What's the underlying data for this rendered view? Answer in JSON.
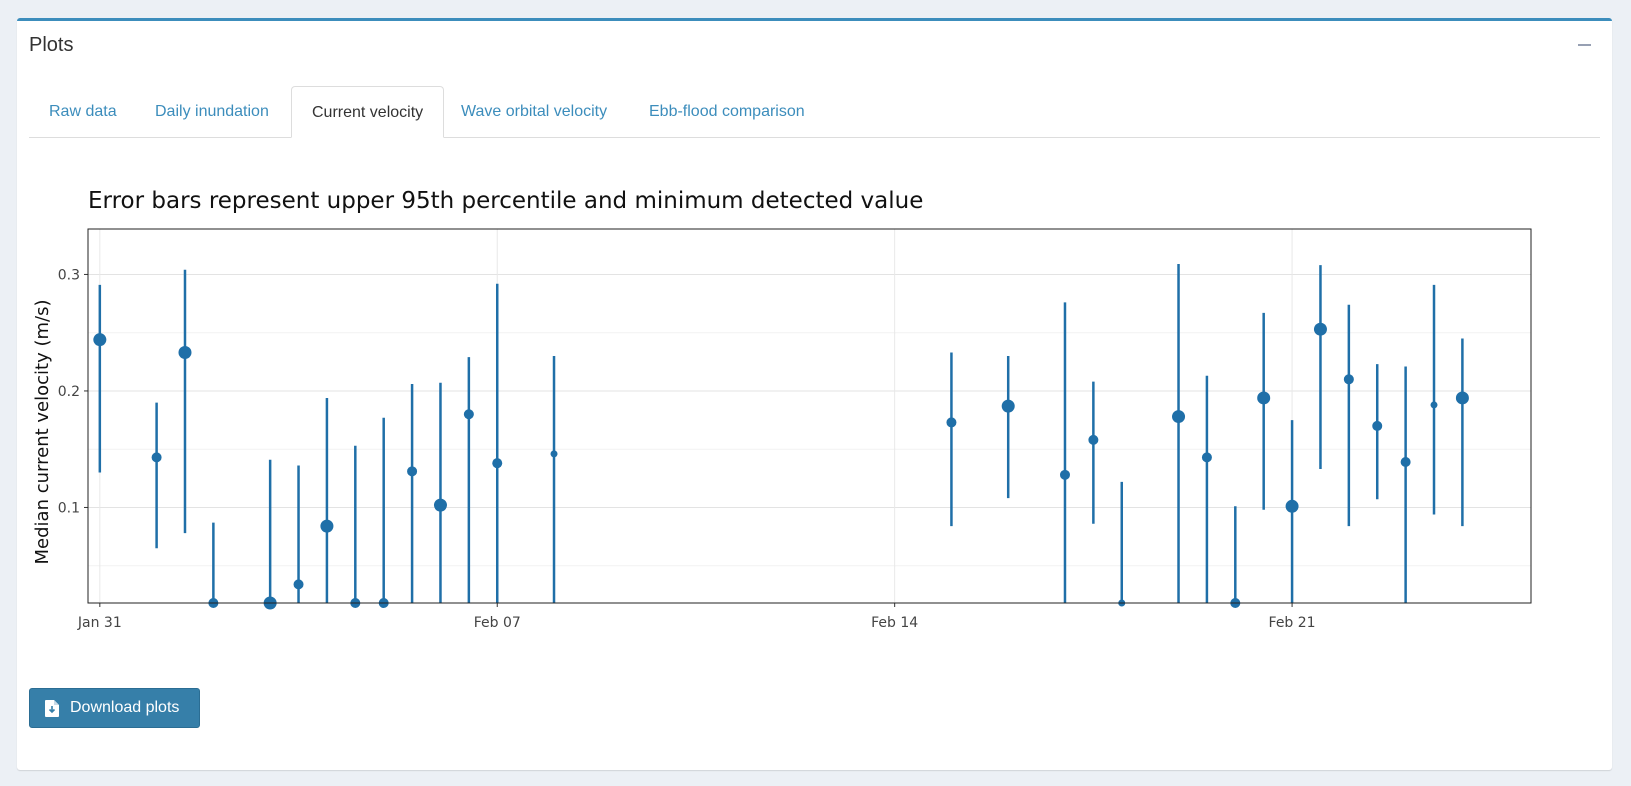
{
  "panel": {
    "title": "Plots"
  },
  "tabs": [
    {
      "label": "Raw data",
      "active": false
    },
    {
      "label": "Daily inundation",
      "active": false
    },
    {
      "label": "Current velocity",
      "active": true
    },
    {
      "label": "Wave orbital velocity",
      "active": false
    },
    {
      "label": "Ebb-flood comparison",
      "active": false
    }
  ],
  "actions": {
    "download_label": "Download plots"
  },
  "colors": {
    "series": "#1f6fa8",
    "accent": "#3c8dbc"
  },
  "chart_data": {
    "type": "scatter",
    "title": "Error bars represent upper 95th percentile and minimum detected value",
    "xlabel": "",
    "ylabel": "Median current velocity (m/s)",
    "ylim": [
      0.018,
      0.339
    ],
    "xlim": [
      "Jan 30, 19:00",
      "Feb 25, 05:00"
    ],
    "x_ticks": [
      "Jan 31",
      "Feb 07",
      "Feb 14",
      "Feb 21"
    ],
    "y_ticks": [
      "0.1",
      "0.2",
      "0.3"
    ],
    "y_tick_values": [
      0.1,
      0.2,
      0.3
    ],
    "grid": true,
    "points": [
      {
        "x": "Jan 31",
        "y": 0.244,
        "upper": 0.291,
        "lower": 0.13,
        "size": "large"
      },
      {
        "x": "Feb 01",
        "y": 0.143,
        "upper": 0.19,
        "lower": 0.065,
        "size": "medium"
      },
      {
        "x": "Feb 01",
        "y": 0.233,
        "upper": 0.304,
        "lower": 0.078,
        "size": "large"
      },
      {
        "x": "Feb 02",
        "y": 0.018,
        "upper": 0.087,
        "lower": 0.018,
        "size": "medium"
      },
      {
        "x": "Feb 03",
        "y": 0.018,
        "upper": 0.141,
        "lower": 0.018,
        "size": "large"
      },
      {
        "x": "Feb 03",
        "y": 0.034,
        "upper": 0.136,
        "lower": 0.018,
        "size": "medium"
      },
      {
        "x": "Feb 04",
        "y": 0.084,
        "upper": 0.194,
        "lower": 0.018,
        "size": "large"
      },
      {
        "x": "Feb 04",
        "y": 0.018,
        "upper": 0.153,
        "lower": 0.018,
        "size": "medium"
      },
      {
        "x": "Feb 05",
        "y": 0.018,
        "upper": 0.177,
        "lower": 0.018,
        "size": "medium"
      },
      {
        "x": "Feb 05",
        "y": 0.131,
        "upper": 0.206,
        "lower": 0.018,
        "size": "medium"
      },
      {
        "x": "Feb 06",
        "y": 0.102,
        "upper": 0.207,
        "lower": 0.018,
        "size": "large"
      },
      {
        "x": "Feb 06",
        "y": 0.18,
        "upper": 0.229,
        "lower": 0.018,
        "size": "medium"
      },
      {
        "x": "Feb 07",
        "y": 0.138,
        "upper": 0.292,
        "lower": 0.018,
        "size": "medium"
      },
      {
        "x": "Feb 08",
        "y": 0.146,
        "upper": 0.23,
        "lower": 0.018,
        "size": "small"
      },
      {
        "x": "Feb 15",
        "y": 0.173,
        "upper": 0.233,
        "lower": 0.084,
        "size": "medium"
      },
      {
        "x": "Feb 16",
        "y": 0.187,
        "upper": 0.23,
        "lower": 0.108,
        "size": "large"
      },
      {
        "x": "Feb 17",
        "y": 0.128,
        "upper": 0.276,
        "lower": 0.018,
        "size": "medium"
      },
      {
        "x": "Feb 17",
        "y": 0.158,
        "upper": 0.208,
        "lower": 0.086,
        "size": "medium"
      },
      {
        "x": "Feb 18",
        "y": 0.018,
        "upper": 0.122,
        "lower": 0.018,
        "size": "small"
      },
      {
        "x": "Feb 19",
        "y": 0.178,
        "upper": 0.309,
        "lower": 0.018,
        "size": "large"
      },
      {
        "x": "Feb 19",
        "y": 0.143,
        "upper": 0.213,
        "lower": 0.018,
        "size": "medium"
      },
      {
        "x": "Feb 20",
        "y": 0.018,
        "upper": 0.101,
        "lower": 0.018,
        "size": "medium"
      },
      {
        "x": "Feb 20",
        "y": 0.194,
        "upper": 0.267,
        "lower": 0.098,
        "size": "large"
      },
      {
        "x": "Feb 21",
        "y": 0.101,
        "upper": 0.175,
        "lower": 0.018,
        "size": "large"
      },
      {
        "x": "Feb 21",
        "y": 0.253,
        "upper": 0.308,
        "lower": 0.133,
        "size": "large"
      },
      {
        "x": "Feb 22",
        "y": 0.21,
        "upper": 0.274,
        "lower": 0.084,
        "size": "medium"
      },
      {
        "x": "Feb 22",
        "y": 0.17,
        "upper": 0.223,
        "lower": 0.107,
        "size": "medium"
      },
      {
        "x": "Feb 23",
        "y": 0.139,
        "upper": 0.221,
        "lower": 0.018,
        "size": "medium"
      },
      {
        "x": "Feb 23",
        "y": 0.188,
        "upper": 0.291,
        "lower": 0.094,
        "size": "small"
      },
      {
        "x": "Feb 24",
        "y": 0.194,
        "upper": 0.245,
        "lower": 0.084,
        "size": "large"
      }
    ]
  }
}
